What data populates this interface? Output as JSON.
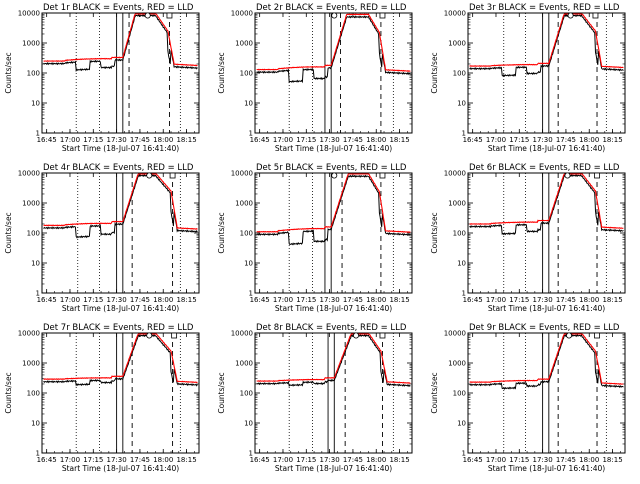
{
  "chart_data": [
    {
      "type": "line",
      "title": "Det 1r BLACK = Events, RED = LLD",
      "xlabel": "Start Time (18-Jul-07 16:41:40)",
      "ylabel": "Counts/sec",
      "yscale": "log",
      "ylim": [
        1,
        10000
      ],
      "xlim": [
        "16:42",
        "18:23"
      ],
      "xticks": [
        "16:45",
        "17:00",
        "17:15",
        "17:30",
        "17:45",
        "18:00",
        "18:15"
      ],
      "yticks": [
        "1",
        "10",
        "100",
        "1000",
        "10000"
      ],
      "profile": [
        250,
        300,
        330,
        10000,
        200
      ],
      "drop": [
        0.55,
        0.62
      ],
      "red_low_t": 0.32,
      "series": [
        {
          "color": "#000000"
        },
        {
          "color": "#ff0000"
        }
      ],
      "solid_lines": [
        "17:30",
        "17:34"
      ],
      "dashed_lines": [
        "17:38",
        "18:04"
      ],
      "dotted_lines": [
        "17:04",
        "17:19",
        "18:11"
      ],
      "markers": [
        {
          "x": "17:50",
          "shape": "circle"
        },
        {
          "x": "18:04",
          "shape": "square"
        }
      ]
    },
    {
      "type": "line",
      "title": "Det 2r BLACK = Events, RED = LLD",
      "xlabel": "Start Time (18-Jul-07 16:41:40)",
      "ylabel": "Counts/sec",
      "yscale": "log",
      "ylim": [
        1,
        10000
      ],
      "xlim": [
        "16:42",
        "18:23"
      ],
      "xticks": [
        "16:45",
        "17:00",
        "17:15",
        "17:30",
        "17:45",
        "18:00",
        "18:15"
      ],
      "yticks": [
        "1",
        "10",
        "100",
        "1000",
        "10000"
      ],
      "profile": [
        130,
        160,
        180,
        9000,
        130
      ],
      "drop": [
        0.42,
        0.5
      ],
      "red_low_t": 0.3,
      "series": [
        {
          "color": "#000000"
        },
        {
          "color": "#ff0000"
        }
      ],
      "solid_lines": [
        "17:27",
        "17:31"
      ],
      "dashed_lines": [
        "17:37",
        "18:03"
      ],
      "dotted_lines": [
        "17:04",
        "17:19",
        "18:11"
      ],
      "markers": [
        {
          "x": "17:33",
          "shape": "circle"
        },
        {
          "x": "18:04",
          "shape": "square"
        }
      ]
    },
    {
      "type": "line",
      "title": "Det 3r BLACK = Events, RED = LLD",
      "xlabel": "Start Time (18-Jul-07 16:41:40)",
      "ylabel": "Counts/sec",
      "yscale": "log",
      "ylim": [
        1,
        10000
      ],
      "xlim": [
        "16:42",
        "18:23"
      ],
      "xticks": [
        "16:45",
        "17:00",
        "17:15",
        "17:30",
        "17:45",
        "18:00",
        "18:15"
      ],
      "yticks": [
        "1",
        "10",
        "100",
        "1000",
        "10000"
      ],
      "profile": [
        170,
        190,
        210,
        10000,
        170
      ],
      "drop": [
        0.55,
        0.62
      ],
      "red_low_t": 0.3,
      "series": [
        {
          "color": "#000000"
        },
        {
          "color": "#ff0000"
        }
      ],
      "solid_lines": [
        "17:30",
        "17:34"
      ],
      "dashed_lines": [
        "17:40",
        "18:05"
      ],
      "dotted_lines": [
        "17:05",
        "17:19",
        "18:11"
      ],
      "markers": [
        {
          "x": "17:48",
          "shape": "circle"
        },
        {
          "x": "18:04",
          "shape": "square"
        }
      ]
    },
    {
      "type": "line",
      "title": "Det 4r BLACK = Events, RED = LLD",
      "xlabel": "Start Time (18-Jul-07 16:41:40)",
      "ylabel": "Counts/sec",
      "yscale": "log",
      "ylim": [
        1,
        10000
      ],
      "xlim": [
        "16:42",
        "18:23"
      ],
      "xticks": [
        "16:45",
        "17:00",
        "17:15",
        "17:30",
        "17:45",
        "18:00",
        "18:15"
      ],
      "yticks": [
        "1",
        "10",
        "100",
        "1000",
        "10000"
      ],
      "profile": [
        180,
        210,
        240,
        10000,
        150
      ],
      "drop": [
        0.45,
        0.53
      ],
      "red_low_t": 0.32,
      "series": [
        {
          "color": "#000000"
        },
        {
          "color": "#ff0000"
        }
      ],
      "solid_lines": [
        "17:30",
        "17:34"
      ],
      "dashed_lines": [
        "17:40",
        "18:06"
      ],
      "dotted_lines": [
        "17:05",
        "17:19",
        "18:11"
      ],
      "markers": [
        {
          "x": "17:51",
          "shape": "circle"
        },
        {
          "x": "18:06",
          "shape": "square"
        }
      ]
    },
    {
      "type": "line",
      "title": "Det 5r BLACK = Events, RED = LLD",
      "xlabel": "Start Time (18-Jul-07 16:41:40)",
      "ylabel": "Counts/sec",
      "yscale": "log",
      "ylim": [
        1,
        10000
      ],
      "xlim": [
        "16:42",
        "18:23"
      ],
      "xticks": [
        "16:45",
        "17:00",
        "17:15",
        "17:30",
        "17:45",
        "18:00",
        "18:15"
      ],
      "yticks": [
        "1",
        "10",
        "100",
        "1000",
        "10000"
      ],
      "profile": [
        110,
        140,
        160,
        9500,
        120
      ],
      "drop": [
        0.4,
        0.46
      ],
      "red_low_t": 0.3,
      "series": [
        {
          "color": "#000000"
        },
        {
          "color": "#ff0000"
        }
      ],
      "solid_lines": [
        "17:27",
        "17:31"
      ],
      "dashed_lines": [
        "17:38",
        "18:03"
      ],
      "dotted_lines": [
        "17:04",
        "17:19",
        "18:11"
      ],
      "markers": [
        {
          "x": "17:33",
          "shape": "circle"
        },
        {
          "x": "18:04",
          "shape": "square"
        }
      ]
    },
    {
      "type": "line",
      "title": "Det 6r BLACK = Events, RED = LLD",
      "xlabel": "Start Time (18-Jul-07 16:41:40)",
      "ylabel": "Counts/sec",
      "yscale": "log",
      "ylim": [
        1,
        10000
      ],
      "xlim": [
        "16:42",
        "18:23"
      ],
      "xticks": [
        "16:45",
        "17:00",
        "17:15",
        "17:30",
        "17:45",
        "18:00",
        "18:15"
      ],
      "yticks": [
        "1",
        "10",
        "100",
        "1000",
        "10000"
      ],
      "profile": [
        200,
        230,
        260,
        10000,
        160
      ],
      "drop": [
        0.52,
        0.6
      ],
      "red_low_t": 0.3,
      "series": [
        {
          "color": "#000000"
        },
        {
          "color": "#ff0000"
        }
      ],
      "solid_lines": [
        "17:30",
        "17:34"
      ],
      "dashed_lines": [
        "17:40",
        "18:05"
      ],
      "dotted_lines": [
        "17:05",
        "17:19",
        "18:11"
      ],
      "markers": [
        {
          "x": "17:46",
          "shape": "circle"
        },
        {
          "x": "18:05",
          "shape": "square"
        }
      ]
    },
    {
      "type": "line",
      "title": "Det 7r BLACK = Events, RED = LLD",
      "xlabel": "Start Time (18-Jul-07 16:41:40)",
      "ylabel": "Counts/sec",
      "yscale": "log",
      "ylim": [
        1,
        10000
      ],
      "xlim": [
        "16:42",
        "18:23"
      ],
      "xticks": [
        "16:45",
        "17:00",
        "17:15",
        "17:30",
        "17:45",
        "18:00",
        "18:15"
      ],
      "yticks": [
        "1",
        "10",
        "100",
        "1000",
        "10000"
      ],
      "profile": [
        290,
        320,
        360,
        10000,
        250
      ],
      "drop": [
        0.75,
        0.85
      ],
      "red_low_t": 0.3,
      "series": [
        {
          "color": "#000000"
        },
        {
          "color": "#ff0000"
        }
      ],
      "solid_lines": [
        "17:30",
        "17:34"
      ],
      "dashed_lines": [
        "17:40",
        "18:06"
      ],
      "dotted_lines": [
        "17:04",
        "17:19",
        "18:11"
      ],
      "markers": [
        {
          "x": "17:51",
          "shape": "circle"
        },
        {
          "x": "18:07",
          "shape": "square"
        }
      ]
    },
    {
      "type": "line",
      "title": "Det 8r BLACK = Events, RED = LLD",
      "xlabel": "Start Time (18-Jul-07 16:41:40)",
      "ylabel": "Counts/sec",
      "yscale": "log",
      "ylim": [
        1,
        10000
      ],
      "xlim": [
        "16:42",
        "18:23"
      ],
      "xticks": [
        "16:45",
        "17:00",
        "17:15",
        "17:30",
        "17:45",
        "18:00",
        "18:15"
      ],
      "yticks": [
        "1",
        "10",
        "100",
        "1000",
        "10000"
      ],
      "profile": [
        250,
        280,
        320,
        10000,
        240
      ],
      "drop": [
        0.82,
        0.9
      ],
      "red_low_t": 0.3,
      "series": [
        {
          "color": "#000000"
        },
        {
          "color": "#ff0000"
        }
      ],
      "solid_lines": [
        "17:29",
        "17:33"
      ],
      "dashed_lines": [
        "17:40",
        "18:04"
      ],
      "dotted_lines": [
        "17:04",
        "17:19",
        "18:11"
      ],
      "markers": [
        {
          "x": "17:47",
          "shape": "circle"
        },
        {
          "x": "18:04",
          "shape": "square"
        }
      ]
    },
    {
      "type": "line",
      "title": "Det 9r BLACK = Events, RED = LLD",
      "xlabel": "Start Time (18-Jul-07 16:41:40)",
      "ylabel": "Counts/sec",
      "yscale": "log",
      "ylim": [
        1,
        10000
      ],
      "xlim": [
        "16:42",
        "18:23"
      ],
      "xticks": [
        "16:45",
        "17:00",
        "17:15",
        "17:30",
        "17:45",
        "18:00",
        "18:15"
      ],
      "yticks": [
        "1",
        "10",
        "100",
        "1000",
        "10000"
      ],
      "profile": [
        230,
        260,
        290,
        10000,
        220
      ],
      "drop": [
        0.7,
        0.8
      ],
      "red_low_t": 0.3,
      "series": [
        {
          "color": "#000000"
        },
        {
          "color": "#ff0000"
        }
      ],
      "solid_lines": [
        "17:30",
        "17:34"
      ],
      "dashed_lines": [
        "17:40",
        "18:05"
      ],
      "dotted_lines": [
        "17:05",
        "17:19",
        "18:11"
      ],
      "markers": [
        {
          "x": "17:47",
          "shape": "circle"
        },
        {
          "x": "18:05",
          "shape": "square"
        }
      ]
    }
  ]
}
